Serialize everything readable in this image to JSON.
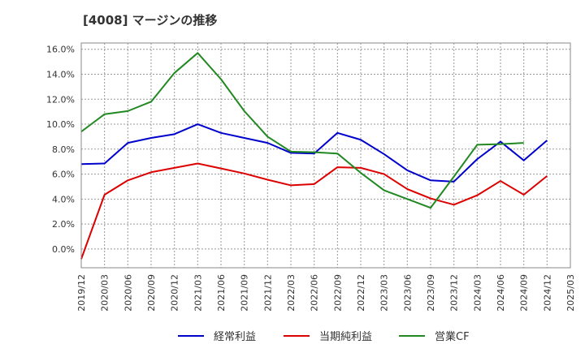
{
  "chart_data": {
    "type": "line",
    "title": "[4008]  マージンの推移",
    "x": [
      "2019/12",
      "2020/03",
      "2020/06",
      "2020/09",
      "2020/12",
      "2021/03",
      "2021/06",
      "2021/09",
      "2021/12",
      "2022/03",
      "2022/06",
      "2022/09",
      "2022/12",
      "2023/03",
      "2023/06",
      "2023/09",
      "2023/12",
      "2024/03",
      "2024/06",
      "2024/09",
      "2024/12",
      "2025/03"
    ],
    "ylim": [
      -1.5,
      16.5
    ],
    "yticks": [
      0,
      2,
      4,
      6,
      8,
      10,
      12,
      14,
      16
    ],
    "ytick_labels": [
      "0.0%",
      "2.0%",
      "4.0%",
      "6.0%",
      "8.0%",
      "10.0%",
      "12.0%",
      "14.0%",
      "16.0%"
    ],
    "grid": true,
    "legend_position": "bottom",
    "series": [
      {
        "name": "経常利益",
        "color": "#0000cc",
        "values": [
          6.8,
          6.85,
          8.5,
          8.9,
          9.2,
          10.0,
          9.3,
          8.9,
          8.5,
          7.7,
          7.65,
          9.3,
          8.75,
          7.6,
          6.3,
          5.5,
          5.4,
          7.2,
          8.6,
          7.1,
          8.7,
          null
        ]
      },
      {
        "name": "当期純利益",
        "color": "#dd0000",
        "values": [
          -0.8,
          4.35,
          5.5,
          6.15,
          6.5,
          6.85,
          6.45,
          6.05,
          5.55,
          5.1,
          5.2,
          6.55,
          6.5,
          6.0,
          4.8,
          4.05,
          3.55,
          4.3,
          5.45,
          4.35,
          5.85,
          null
        ]
      },
      {
        "name": "営業CF",
        "color": "#228822",
        "values": [
          9.4,
          10.8,
          11.05,
          11.8,
          14.1,
          15.7,
          13.6,
          11.05,
          9.0,
          7.8,
          7.75,
          7.65,
          6.1,
          4.7,
          4.0,
          3.3,
          5.8,
          8.35,
          8.4,
          8.5,
          null,
          null
        ]
      }
    ]
  }
}
